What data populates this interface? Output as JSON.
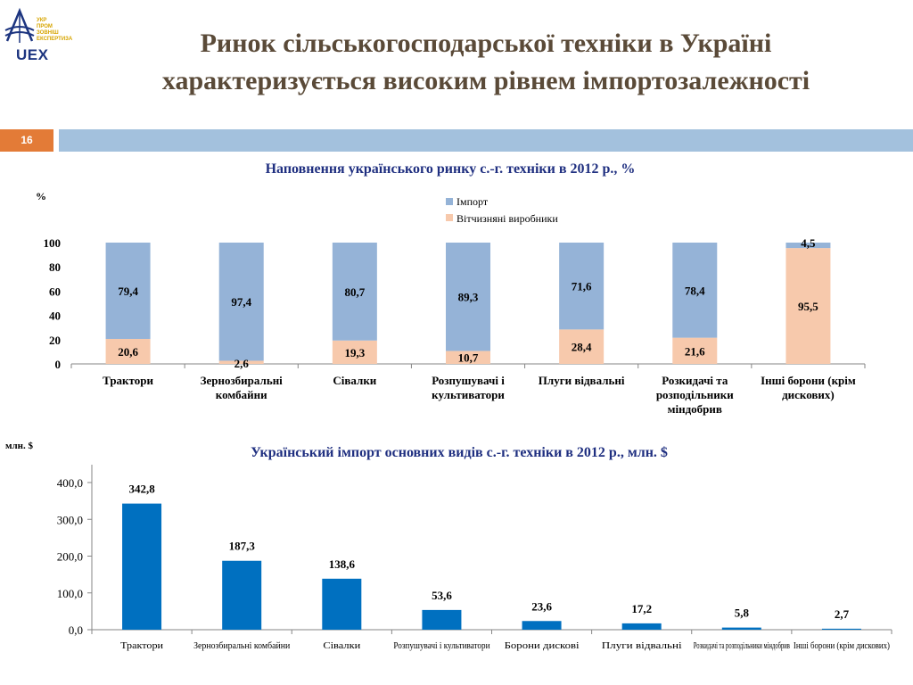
{
  "header": {
    "title_line1": "Ринок сільськогосподарської техніки в Україні",
    "title_line2": "характеризується високим рівнем імпортозалежності",
    "page_number": "16",
    "logo_lines": [
      "Укр",
      "пром",
      "зовніш",
      "експертиза"
    ],
    "logo_abbr": "UEX"
  },
  "colors": {
    "title": "#5a4a38",
    "chart_title": "#1f2f80",
    "import": "#95b3d7",
    "domestic": "#f7c9ac",
    "blue_bar": "#0070c0",
    "strip": "#a3c1dd",
    "page_badge": "#e37b37"
  },
  "chart_data": [
    {
      "type": "bar",
      "stacked": true,
      "title": "Наповнення українського ринку с.-г. техніки в 2012 р., %",
      "ylabel": "%",
      "ylim": [
        0,
        100
      ],
      "yticks": [
        "0",
        "20",
        "40",
        "60",
        "80",
        "100"
      ],
      "legend_position": "top",
      "categories": [
        "Трактори",
        "Зернозбиральні комбайни",
        "Сівалки",
        "Розпушувачі  і культиватори",
        "Плуги відвальні",
        "Розкидачі та розподільники міндобрив",
        "Інші борони  (крім дискових)"
      ],
      "series": [
        {
          "name": "Вітчизняні виробники",
          "values": [
            20.6,
            2.6,
            19.3,
            10.7,
            28.4,
            21.6,
            95.5
          ],
          "labels": [
            "20,6",
            "2,6",
            "19,3",
            "10,7",
            "28,4",
            "21,6",
            "95,5"
          ]
        },
        {
          "name": "Імпорт",
          "values": [
            79.4,
            97.4,
            80.7,
            89.3,
            71.6,
            78.4,
            4.5
          ],
          "labels": [
            "79,4",
            "97,4",
            "80,7",
            "89,3",
            "71,6",
            "78,4",
            "4,5"
          ]
        }
      ]
    },
    {
      "type": "bar",
      "title": "Український імпорт основних видів с.-г. техніки в 2012 р., млн. $",
      "ylabel": "млн. $",
      "ylim": [
        0,
        400
      ],
      "yticks": [
        "0,0",
        "100,0",
        "200,0",
        "300,0",
        "400,0"
      ],
      "categories": [
        "Трактори",
        "Зернозбиральні комбайни",
        "Сівалки",
        "Розпушувачі  і культиватори",
        "Борони дискові",
        "Плуги відвальні",
        "Розкидачі та розподільники міндобрив",
        "Інші борони (крім дискових)"
      ],
      "values": [
        342.8,
        187.3,
        138.6,
        53.6,
        23.6,
        17.2,
        5.8,
        2.7
      ],
      "value_labels": [
        "342,8",
        "187,3",
        "138,6",
        "53,6",
        "23,6",
        "17,2",
        "5,8",
        "2,7"
      ]
    }
  ]
}
